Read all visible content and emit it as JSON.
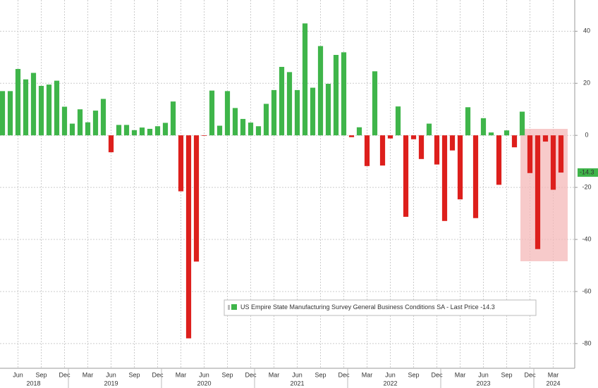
{
  "chart_data": {
    "type": "bar",
    "categories": [
      null,
      null,
      "Jun",
      null,
      null,
      "Sep",
      null,
      null,
      "Dec",
      null,
      null,
      "Mar",
      null,
      null,
      "Jun",
      null,
      null,
      "Sep",
      null,
      null,
      "Dec",
      null,
      null,
      "Mar",
      null,
      null,
      "Jun",
      null,
      null,
      "Sep",
      null,
      null,
      "Dec",
      null,
      null,
      "Mar",
      null,
      null,
      "Jun",
      null,
      null,
      "Sep",
      null,
      null,
      "Dec",
      null,
      null,
      "Mar",
      null,
      null,
      "Jun",
      null,
      null,
      "Sep",
      null,
      null,
      "Dec",
      null,
      null,
      "Mar",
      null,
      null,
      "Jun",
      null,
      null,
      "Sep",
      null,
      null,
      "Dec",
      null,
      null,
      "Mar",
      null
    ],
    "year_labels": [
      null,
      null,
      null,
      null,
      "2018",
      null,
      null,
      null,
      null,
      null,
      null,
      null,
      null,
      null,
      "2019",
      null,
      null,
      null,
      null,
      null,
      null,
      null,
      null,
      null,
      null,
      null,
      "2020",
      null,
      null,
      null,
      null,
      null,
      null,
      null,
      null,
      null,
      null,
      null,
      "2021",
      null,
      null,
      null,
      null,
      null,
      null,
      null,
      null,
      null,
      null,
      null,
      "2022",
      null,
      null,
      null,
      null,
      null,
      null,
      null,
      null,
      null,
      null,
      null,
      "2023",
      null,
      null,
      null,
      null,
      null,
      null,
      null,
      null,
      "2024",
      null
    ],
    "series": [
      {
        "name": "US Empire State Manufacturing Survey General Business Conditions SA - Last Price",
        "values": [
          17,
          17,
          25.5,
          21.5,
          24,
          19,
          19.5,
          21,
          11,
          4.5,
          10,
          5,
          9.5,
          14,
          -6.5,
          4,
          4,
          2,
          3,
          2.5,
          3.5,
          4.8,
          13,
          -21.5,
          -78,
          -48.5,
          -0.2,
          17.2,
          3.7,
          17,
          10.5,
          6.3,
          4.9,
          3.5,
          12.1,
          17.4,
          26.3,
          24.3,
          17.4,
          43,
          18.3,
          34.3,
          19.8,
          30.9,
          31.9,
          -0.7,
          3.1,
          -11.8,
          24.6,
          -11.6,
          -1.2,
          11.1,
          -31.3,
          -1.5,
          -9.1,
          4.5,
          -11.2,
          -32.9,
          -5.8,
          -24.6,
          10.8,
          -31.8,
          6.6,
          1.1,
          -19,
          1.9,
          -4.6,
          9.1,
          -14.5,
          -43.7,
          -2.4,
          -20.9,
          -14.3
        ]
      }
    ],
    "last_value": -14.3,
    "positive_color": "#3fb54a",
    "negative_color": "#dd1f1c",
    "ylim": [
      -89.5,
      52
    ],
    "yticks": [
      40,
      20,
      0,
      -20,
      -40,
      -60,
      -80
    ],
    "grid": true
  }
}
